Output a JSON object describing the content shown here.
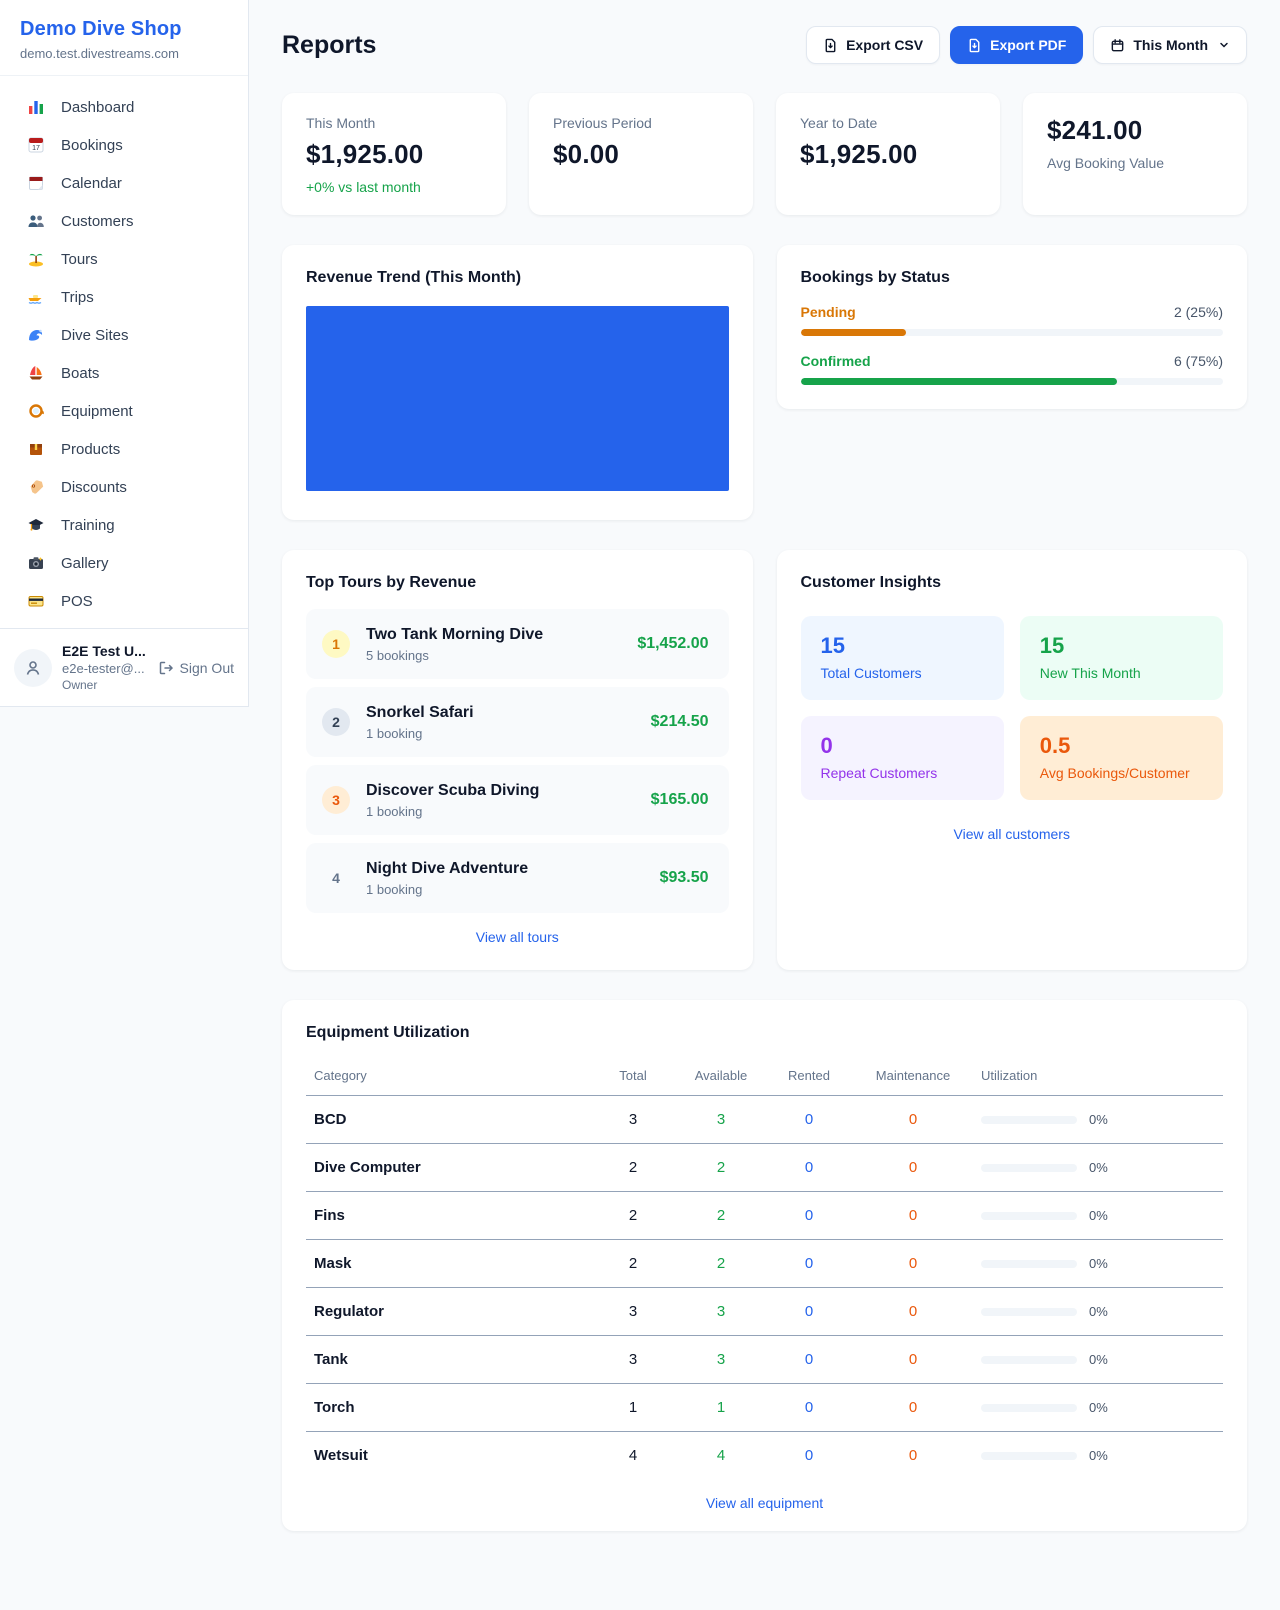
{
  "colors": {
    "accent": "#2563eb",
    "green": "#16a34a",
    "amber": "#d97706",
    "orange": "#ea580c",
    "purple": "#9333ea"
  },
  "sidebar": {
    "shop_name": "Demo Dive Shop",
    "domain": "demo.test.divestreams.com",
    "items": [
      {
        "icon": "bar-chart-icon",
        "label": "Dashboard"
      },
      {
        "icon": "calendar-17-icon",
        "label": "Bookings"
      },
      {
        "icon": "tear-calendar-icon",
        "label": "Calendar"
      },
      {
        "icon": "people-icon",
        "label": "Customers"
      },
      {
        "icon": "island-icon",
        "label": "Tours"
      },
      {
        "icon": "speedboat-icon",
        "label": "Trips"
      },
      {
        "icon": "wave-icon",
        "label": "Dive Sites"
      },
      {
        "icon": "sailboat-icon",
        "label": "Boats"
      },
      {
        "icon": "dive-mask-icon",
        "label": "Equipment"
      },
      {
        "icon": "package-icon",
        "label": "Products"
      },
      {
        "icon": "tag-icon",
        "label": "Discounts"
      },
      {
        "icon": "grad-cap-icon",
        "label": "Training"
      },
      {
        "icon": "camera-icon",
        "label": "Gallery"
      },
      {
        "icon": "credit-card-icon",
        "label": "POS"
      }
    ],
    "user": {
      "name": "E2E Test U...",
      "email": "e2e-tester@...",
      "role": "Owner",
      "sign_out": "Sign Out"
    }
  },
  "header": {
    "title": "Reports",
    "export_csv": "Export CSV",
    "export_pdf": "Export PDF",
    "period": "This Month"
  },
  "stats": [
    {
      "label": "This Month",
      "value": "$1,925.00",
      "delta": "+0% vs last month"
    },
    {
      "label": "Previous Period",
      "value": "$0.00"
    },
    {
      "label": "Year to Date",
      "value": "$1,925.00"
    },
    {
      "label": "Avg Booking Value",
      "value": "$241.00"
    }
  ],
  "chart_data": [
    {
      "type": "bar",
      "title": "Revenue Trend (This Month)",
      "categories": [
        "This Month"
      ],
      "values": [
        1925
      ],
      "bar_color": "#2563eb",
      "note_visible_axes": false
    },
    {
      "type": "bar",
      "title": "Bookings by Status",
      "categories": [
        "Pending",
        "Confirmed"
      ],
      "values": [
        2,
        6
      ],
      "percentages": [
        25,
        75
      ],
      "colors": [
        "#d97706",
        "#16a34a"
      ]
    }
  ],
  "revenue_trend": {
    "title": "Revenue Trend (This Month)"
  },
  "bookings_by_status": {
    "title": "Bookings by Status",
    "rows": [
      {
        "label": "Pending",
        "count": "2 (25%)",
        "pct": 25
      },
      {
        "label": "Confirmed",
        "count": "6 (75%)",
        "pct": 75
      }
    ]
  },
  "top_tours": {
    "title": "Top Tours by Revenue",
    "view_all": "View all tours",
    "items": [
      {
        "rank": "1",
        "name": "Two Tank Morning Dive",
        "bookings": "5 bookings",
        "revenue": "$1,452.00"
      },
      {
        "rank": "2",
        "name": "Snorkel Safari",
        "bookings": "1 booking",
        "revenue": "$214.50"
      },
      {
        "rank": "3",
        "name": "Discover Scuba Diving",
        "bookings": "1 booking",
        "revenue": "$165.00"
      },
      {
        "rank": "4",
        "name": "Night Dive Adventure",
        "bookings": "1 booking",
        "revenue": "$93.50"
      }
    ]
  },
  "customer_insights": {
    "title": "Customer Insights",
    "view_all": "View all customers",
    "tiles": [
      {
        "value": "15",
        "label": "Total Customers"
      },
      {
        "value": "15",
        "label": "New This Month"
      },
      {
        "value": "0",
        "label": "Repeat Customers"
      },
      {
        "value": "0.5",
        "label": "Avg Bookings/Customer"
      }
    ]
  },
  "equipment": {
    "title": "Equipment Utilization",
    "view_all": "View all equipment",
    "columns": [
      "Category",
      "Total",
      "Available",
      "Rented",
      "Maintenance",
      "Utilization"
    ],
    "util_pct": 0,
    "rows": [
      {
        "category": "BCD",
        "total": "3",
        "available": "3",
        "rented": "0",
        "maintenance": "0",
        "utilization": "0%"
      },
      {
        "category": "Dive Computer",
        "total": "2",
        "available": "2",
        "rented": "0",
        "maintenance": "0",
        "utilization": "0%"
      },
      {
        "category": "Fins",
        "total": "2",
        "available": "2",
        "rented": "0",
        "maintenance": "0",
        "utilization": "0%"
      },
      {
        "category": "Mask",
        "total": "2",
        "available": "2",
        "rented": "0",
        "maintenance": "0",
        "utilization": "0%"
      },
      {
        "category": "Regulator",
        "total": "3",
        "available": "3",
        "rented": "0",
        "maintenance": "0",
        "utilization": "0%"
      },
      {
        "category": "Tank",
        "total": "3",
        "available": "3",
        "rented": "0",
        "maintenance": "0",
        "utilization": "0%"
      },
      {
        "category": "Torch",
        "total": "1",
        "available": "1",
        "rented": "0",
        "maintenance": "0",
        "utilization": "0%"
      },
      {
        "category": "Wetsuit",
        "total": "4",
        "available": "4",
        "rented": "0",
        "maintenance": "0",
        "utilization": "0%"
      }
    ]
  }
}
